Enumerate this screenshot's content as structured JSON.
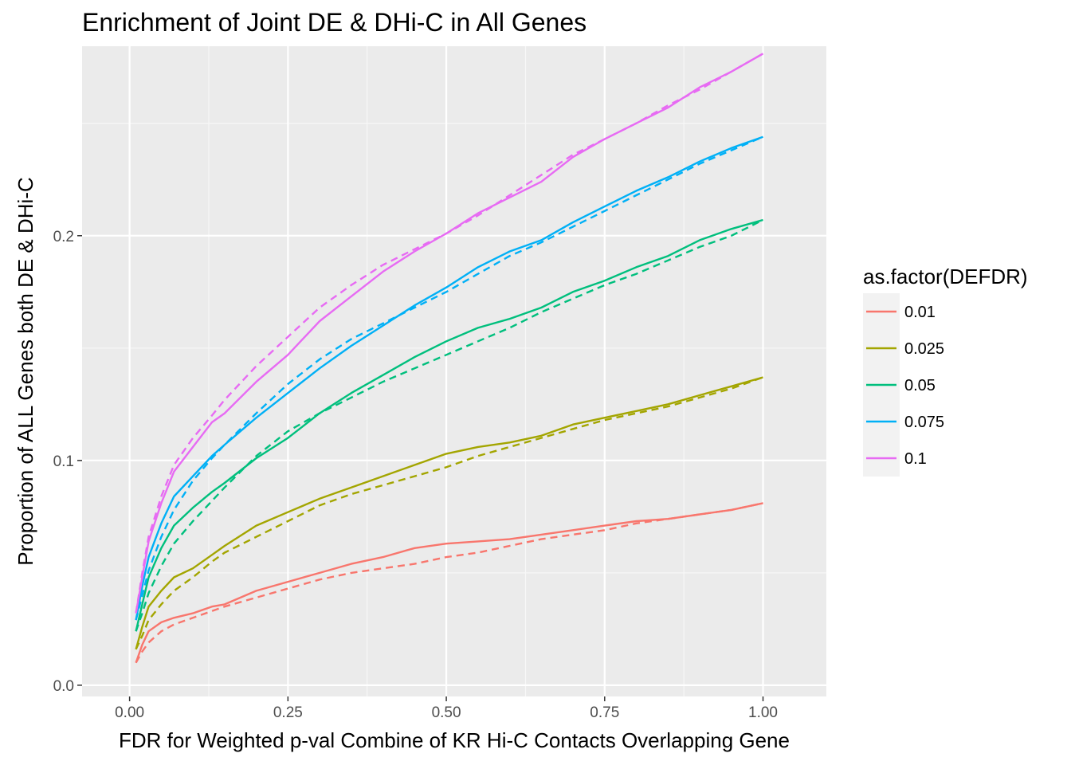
{
  "chart_data": {
    "type": "line",
    "title": "Enrichment of Joint DE & DHi-C in All Genes",
    "xlabel": "FDR for Weighted p-val Combine of KR Hi-C Contacts Overlapping Gene",
    "ylabel": "Proportion of ALL Genes both DE & DHi-C",
    "xlim": [
      -0.075,
      1.1
    ],
    "ylim": [
      -0.005,
      0.2843
    ],
    "x_ticks": [
      0.0,
      0.25,
      0.5,
      0.75,
      1.0
    ],
    "x_tick_labels": [
      "0.00",
      "0.25",
      "0.50",
      "0.75",
      "1.00"
    ],
    "y_ticks": [
      0.0,
      0.1,
      0.2
    ],
    "y_tick_labels": [
      "0.0",
      "0.1",
      "0.2"
    ],
    "grid": true,
    "legend": {
      "title": "as.factor(DEFDR)",
      "position": "right"
    },
    "line_styles": [
      "solid",
      "dashed"
    ],
    "series": [
      {
        "name": "0.01",
        "color": "#F8766D",
        "solid": [
          [
            0.01,
            0.01
          ],
          [
            0.02,
            0.018
          ],
          [
            0.03,
            0.024
          ],
          [
            0.05,
            0.028
          ],
          [
            0.07,
            0.03
          ],
          [
            0.1,
            0.032
          ],
          [
            0.13,
            0.035
          ],
          [
            0.15,
            0.036
          ],
          [
            0.2,
            0.042
          ],
          [
            0.25,
            0.046
          ],
          [
            0.3,
            0.05
          ],
          [
            0.35,
            0.054
          ],
          [
            0.4,
            0.057
          ],
          [
            0.45,
            0.061
          ],
          [
            0.5,
            0.063
          ],
          [
            0.55,
            0.064
          ],
          [
            0.6,
            0.065
          ],
          [
            0.65,
            0.067
          ],
          [
            0.7,
            0.069
          ],
          [
            0.75,
            0.071
          ],
          [
            0.8,
            0.073
          ],
          [
            0.85,
            0.074
          ],
          [
            0.9,
            0.076
          ],
          [
            0.95,
            0.078
          ],
          [
            1.0,
            0.081
          ]
        ],
        "dashed": [
          [
            0.01,
            0.01
          ],
          [
            0.02,
            0.015
          ],
          [
            0.03,
            0.019
          ],
          [
            0.05,
            0.024
          ],
          [
            0.07,
            0.027
          ],
          [
            0.1,
            0.03
          ],
          [
            0.13,
            0.033
          ],
          [
            0.15,
            0.035
          ],
          [
            0.2,
            0.039
          ],
          [
            0.25,
            0.043
          ],
          [
            0.3,
            0.047
          ],
          [
            0.35,
            0.05
          ],
          [
            0.4,
            0.052
          ],
          [
            0.45,
            0.054
          ],
          [
            0.5,
            0.057
          ],
          [
            0.55,
            0.059
          ],
          [
            0.6,
            0.062
          ],
          [
            0.65,
            0.065
          ],
          [
            0.7,
            0.067
          ],
          [
            0.75,
            0.069
          ],
          [
            0.8,
            0.072
          ],
          [
            0.85,
            0.074
          ],
          [
            0.9,
            0.076
          ],
          [
            0.95,
            0.078
          ],
          [
            1.0,
            0.081
          ]
        ]
      },
      {
        "name": "0.025",
        "color": "#A3A500",
        "solid": [
          [
            0.01,
            0.016
          ],
          [
            0.02,
            0.026
          ],
          [
            0.03,
            0.035
          ],
          [
            0.05,
            0.042
          ],
          [
            0.07,
            0.048
          ],
          [
            0.1,
            0.052
          ],
          [
            0.13,
            0.058
          ],
          [
            0.15,
            0.062
          ],
          [
            0.2,
            0.071
          ],
          [
            0.25,
            0.077
          ],
          [
            0.3,
            0.083
          ],
          [
            0.35,
            0.088
          ],
          [
            0.4,
            0.093
          ],
          [
            0.45,
            0.098
          ],
          [
            0.5,
            0.103
          ],
          [
            0.55,
            0.106
          ],
          [
            0.6,
            0.108
          ],
          [
            0.65,
            0.111
          ],
          [
            0.7,
            0.116
          ],
          [
            0.75,
            0.119
          ],
          [
            0.8,
            0.122
          ],
          [
            0.85,
            0.125
          ],
          [
            0.9,
            0.129
          ],
          [
            0.95,
            0.133
          ],
          [
            1.0,
            0.137
          ]
        ],
        "dashed": [
          [
            0.01,
            0.016
          ],
          [
            0.02,
            0.022
          ],
          [
            0.03,
            0.029
          ],
          [
            0.05,
            0.036
          ],
          [
            0.07,
            0.042
          ],
          [
            0.1,
            0.048
          ],
          [
            0.13,
            0.055
          ],
          [
            0.15,
            0.059
          ],
          [
            0.2,
            0.066
          ],
          [
            0.25,
            0.073
          ],
          [
            0.3,
            0.08
          ],
          [
            0.35,
            0.085
          ],
          [
            0.4,
            0.089
          ],
          [
            0.45,
            0.093
          ],
          [
            0.5,
            0.097
          ],
          [
            0.55,
            0.102
          ],
          [
            0.6,
            0.106
          ],
          [
            0.65,
            0.11
          ],
          [
            0.7,
            0.114
          ],
          [
            0.75,
            0.118
          ],
          [
            0.8,
            0.121
          ],
          [
            0.85,
            0.124
          ],
          [
            0.9,
            0.128
          ],
          [
            0.95,
            0.132
          ],
          [
            1.0,
            0.137
          ]
        ]
      },
      {
        "name": "0.05",
        "color": "#00BF7D",
        "solid": [
          [
            0.01,
            0.024
          ],
          [
            0.02,
            0.036
          ],
          [
            0.03,
            0.048
          ],
          [
            0.05,
            0.061
          ],
          [
            0.07,
            0.071
          ],
          [
            0.1,
            0.079
          ],
          [
            0.13,
            0.086
          ],
          [
            0.15,
            0.09
          ],
          [
            0.2,
            0.101
          ],
          [
            0.25,
            0.11
          ],
          [
            0.3,
            0.121
          ],
          [
            0.35,
            0.13
          ],
          [
            0.4,
            0.138
          ],
          [
            0.45,
            0.146
          ],
          [
            0.5,
            0.153
          ],
          [
            0.55,
            0.159
          ],
          [
            0.6,
            0.163
          ],
          [
            0.65,
            0.168
          ],
          [
            0.7,
            0.175
          ],
          [
            0.75,
            0.18
          ],
          [
            0.8,
            0.186
          ],
          [
            0.85,
            0.191
          ],
          [
            0.9,
            0.198
          ],
          [
            0.95,
            0.203
          ],
          [
            1.0,
            0.207
          ]
        ],
        "dashed": [
          [
            0.01,
            0.024
          ],
          [
            0.02,
            0.032
          ],
          [
            0.03,
            0.041
          ],
          [
            0.05,
            0.053
          ],
          [
            0.07,
            0.063
          ],
          [
            0.1,
            0.073
          ],
          [
            0.13,
            0.082
          ],
          [
            0.15,
            0.088
          ],
          [
            0.2,
            0.102
          ],
          [
            0.25,
            0.113
          ],
          [
            0.3,
            0.121
          ],
          [
            0.35,
            0.128
          ],
          [
            0.4,
            0.135
          ],
          [
            0.45,
            0.141
          ],
          [
            0.5,
            0.147
          ],
          [
            0.55,
            0.153
          ],
          [
            0.6,
            0.159
          ],
          [
            0.65,
            0.166
          ],
          [
            0.7,
            0.172
          ],
          [
            0.75,
            0.178
          ],
          [
            0.8,
            0.183
          ],
          [
            0.85,
            0.189
          ],
          [
            0.9,
            0.195
          ],
          [
            0.95,
            0.2
          ],
          [
            1.0,
            0.207
          ]
        ]
      },
      {
        "name": "0.075",
        "color": "#00B0F6",
        "solid": [
          [
            0.01,
            0.029
          ],
          [
            0.02,
            0.044
          ],
          [
            0.03,
            0.057
          ],
          [
            0.05,
            0.072
          ],
          [
            0.07,
            0.084
          ],
          [
            0.1,
            0.093
          ],
          [
            0.13,
            0.102
          ],
          [
            0.15,
            0.107
          ],
          [
            0.2,
            0.119
          ],
          [
            0.25,
            0.13
          ],
          [
            0.3,
            0.141
          ],
          [
            0.35,
            0.151
          ],
          [
            0.4,
            0.16
          ],
          [
            0.45,
            0.169
          ],
          [
            0.5,
            0.177
          ],
          [
            0.55,
            0.186
          ],
          [
            0.6,
            0.193
          ],
          [
            0.65,
            0.198
          ],
          [
            0.7,
            0.206
          ],
          [
            0.75,
            0.213
          ],
          [
            0.8,
            0.22
          ],
          [
            0.85,
            0.226
          ],
          [
            0.9,
            0.233
          ],
          [
            0.95,
            0.239
          ],
          [
            1.0,
            0.244
          ]
        ],
        "dashed": [
          [
            0.01,
            0.029
          ],
          [
            0.02,
            0.04
          ],
          [
            0.03,
            0.051
          ],
          [
            0.05,
            0.066
          ],
          [
            0.07,
            0.078
          ],
          [
            0.1,
            0.091
          ],
          [
            0.13,
            0.101
          ],
          [
            0.15,
            0.107
          ],
          [
            0.2,
            0.121
          ],
          [
            0.25,
            0.134
          ],
          [
            0.3,
            0.145
          ],
          [
            0.35,
            0.154
          ],
          [
            0.4,
            0.161
          ],
          [
            0.45,
            0.168
          ],
          [
            0.5,
            0.175
          ],
          [
            0.55,
            0.183
          ],
          [
            0.6,
            0.191
          ],
          [
            0.65,
            0.197
          ],
          [
            0.7,
            0.204
          ],
          [
            0.75,
            0.211
          ],
          [
            0.8,
            0.218
          ],
          [
            0.85,
            0.225
          ],
          [
            0.9,
            0.232
          ],
          [
            0.95,
            0.238
          ],
          [
            1.0,
            0.244
          ]
        ]
      },
      {
        "name": "0.1",
        "color": "#E76BF3",
        "solid": [
          [
            0.01,
            0.032
          ],
          [
            0.02,
            0.048
          ],
          [
            0.03,
            0.064
          ],
          [
            0.05,
            0.081
          ],
          [
            0.07,
            0.095
          ],
          [
            0.1,
            0.106
          ],
          [
            0.13,
            0.117
          ],
          [
            0.15,
            0.121
          ],
          [
            0.2,
            0.135
          ],
          [
            0.25,
            0.147
          ],
          [
            0.3,
            0.162
          ],
          [
            0.35,
            0.173
          ],
          [
            0.4,
            0.184
          ],
          [
            0.45,
            0.193
          ],
          [
            0.5,
            0.201
          ],
          [
            0.55,
            0.21
          ],
          [
            0.6,
            0.217
          ],
          [
            0.65,
            0.224
          ],
          [
            0.7,
            0.235
          ],
          [
            0.75,
            0.243
          ],
          [
            0.8,
            0.25
          ],
          [
            0.85,
            0.257
          ],
          [
            0.9,
            0.266
          ],
          [
            0.95,
            0.273
          ],
          [
            1.0,
            0.281
          ]
        ],
        "dashed": [
          [
            0.01,
            0.032
          ],
          [
            0.02,
            0.05
          ],
          [
            0.03,
            0.066
          ],
          [
            0.05,
            0.084
          ],
          [
            0.07,
            0.098
          ],
          [
            0.1,
            0.11
          ],
          [
            0.13,
            0.12
          ],
          [
            0.15,
            0.127
          ],
          [
            0.2,
            0.142
          ],
          [
            0.25,
            0.155
          ],
          [
            0.3,
            0.168
          ],
          [
            0.35,
            0.178
          ],
          [
            0.4,
            0.187
          ],
          [
            0.45,
            0.194
          ],
          [
            0.5,
            0.201
          ],
          [
            0.55,
            0.209
          ],
          [
            0.6,
            0.218
          ],
          [
            0.65,
            0.227
          ],
          [
            0.7,
            0.236
          ],
          [
            0.75,
            0.243
          ],
          [
            0.8,
            0.25
          ],
          [
            0.85,
            0.258
          ],
          [
            0.9,
            0.265
          ],
          [
            0.95,
            0.273
          ],
          [
            1.0,
            0.281
          ]
        ]
      }
    ]
  }
}
